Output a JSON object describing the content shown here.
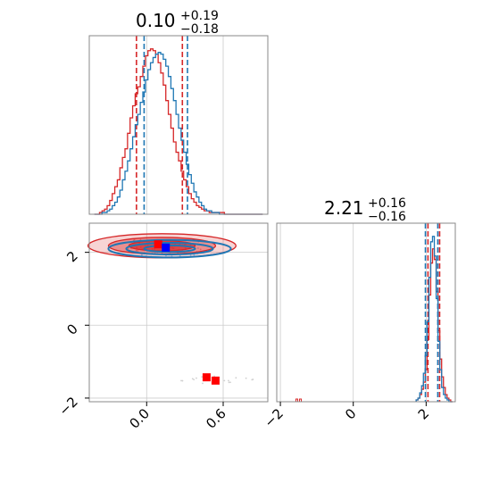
{
  "chart_data": {
    "type": "corner",
    "colors": {
      "series_a": "#d62728",
      "series_b": "#1f77b4",
      "marker_a": "#ff0000",
      "marker_b": "#0000ff",
      "grid": "#cccccc"
    },
    "panels": [
      {
        "id": "hist_param1",
        "type": "histogram",
        "title": {
          "value": "0.10",
          "sup": "+0.19",
          "sub": "−0.18"
        },
        "xlim": [
          -0.45,
          0.95
        ],
        "bin_centers": [
          -0.4,
          -0.38,
          -0.36,
          -0.34,
          -0.32,
          -0.3,
          -0.28,
          -0.26,
          -0.24,
          -0.22,
          -0.2,
          -0.18,
          -0.16,
          -0.14,
          -0.12,
          -0.1,
          -0.08,
          -0.06,
          -0.04,
          -0.02,
          0.0,
          0.02,
          0.04,
          0.06,
          0.08,
          0.1,
          0.12,
          0.14,
          0.16,
          0.18,
          0.2,
          0.22,
          0.24,
          0.26,
          0.28,
          0.3,
          0.32,
          0.34,
          0.36,
          0.38,
          0.4,
          0.42,
          0.44,
          0.46,
          0.48,
          0.5,
          0.52,
          0.54,
          0.56,
          0.58,
          0.6,
          0.62,
          0.64,
          0.66,
          0.68,
          0.7,
          0.72,
          0.74,
          0.76,
          0.78,
          0.8,
          0.82,
          0.84,
          0.86,
          0.88,
          0.9
        ],
        "series": [
          {
            "color": "#d62728",
            "counts": [
              0,
              0,
              1,
              2,
              3,
              5,
              8,
              12,
              16,
              20,
              27,
              33,
              38,
              47,
              56,
              63,
              70,
              74,
              80,
              86,
              92,
              95,
              96,
              95,
              93,
              88,
              82,
              75,
              66,
              58,
              50,
              42,
              36,
              31,
              25,
              20,
              16,
              12,
              9,
              7,
              5,
              4,
              3,
              2,
              2,
              1,
              1,
              1,
              1,
              1,
              1,
              0,
              0,
              0,
              0,
              0,
              0,
              0,
              0,
              0,
              0,
              0,
              0,
              0,
              0,
              0
            ],
            "markers": [
              -0.08,
              0.28
            ]
          },
          {
            "color": "#1f77b4",
            "counts": [
              0,
              0,
              0,
              1,
              1,
              2,
              3,
              5,
              7,
              10,
              14,
              20,
              25,
              31,
              38,
              45,
              52,
              58,
              65,
              71,
              78,
              84,
              88,
              91,
              93,
              94,
              93,
              90,
              86,
              80,
              73,
              66,
              58,
              50,
              43,
              36,
              29,
              23,
              18,
              13,
              10,
              7,
              5,
              3,
              2,
              2,
              1,
              1,
              1,
              0,
              0,
              0,
              0,
              0,
              0,
              0,
              0,
              0,
              0,
              0,
              0,
              0,
              0,
              0,
              0,
              0
            ],
            "markers": [
              -0.02,
              0.32
            ]
          }
        ]
      },
      {
        "id": "joint",
        "type": "scatter_contour",
        "xlim": [
          -0.45,
          0.95
        ],
        "ylim": [
          -2.1,
          2.8
        ],
        "contours": [
          {
            "color": "#d62728",
            "cx": 0.12,
            "cy": 2.18,
            "levels": [
              [
                0.58,
                0.33
              ],
              [
                0.42,
                0.23
              ],
              [
                0.26,
                0.14
              ]
            ],
            "fill_opacity": [
              0.2,
              0.4,
              0.7
            ]
          },
          {
            "color": "#1f77b4",
            "cx": 0.18,
            "cy": 2.1,
            "levels": [
              [
                0.48,
                0.24
              ],
              [
                0.34,
                0.16
              ],
              [
                0.2,
                0.09
              ]
            ],
            "fill_opacity": [
              0,
              0,
              0
            ]
          }
        ],
        "truth_points": [
          {
            "color": "#ff0000",
            "x": 0.09,
            "y": 2.22
          },
          {
            "color": "#0000ff",
            "x": 0.15,
            "y": 2.13
          },
          {
            "color": "#ff0000",
            "x": 0.47,
            "y": -1.43
          },
          {
            "color": "#ff0000",
            "x": 0.54,
            "y": -1.52
          }
        ],
        "scatter_clusters": [
          {
            "color": "#ef9a9a",
            "cx": 0.15,
            "cy": 2.15,
            "sx": 0.3,
            "sy": 0.2,
            "n": 50
          },
          {
            "color": "#90caf9",
            "cx": 0.2,
            "cy": 2.05,
            "sx": 0.25,
            "sy": 0.18,
            "n": 40
          },
          {
            "color": "#d0d0d0",
            "cx": 0.55,
            "cy": -1.5,
            "sx": 0.3,
            "sy": 0.1,
            "n": 18
          }
        ]
      },
      {
        "id": "hist_param2",
        "type": "histogram",
        "title": {
          "value": "2.21",
          "sup": "+0.16",
          "sub": "−0.16"
        },
        "xlim": [
          -2.1,
          2.8
        ],
        "bin_centers": [
          1.75,
          1.8,
          1.85,
          1.9,
          1.95,
          2.0,
          2.05,
          2.1,
          2.15,
          2.2,
          2.25,
          2.3,
          2.35,
          2.4,
          2.45,
          2.5,
          2.55,
          2.6,
          2.65,
          2.7
        ],
        "series": [
          {
            "color": "#d62728",
            "counts": [
              1,
              2,
              4,
              7,
              11,
              18,
              35,
              60,
              78,
              86,
              80,
              62,
              40,
              24,
              14,
              8,
              4,
              2,
              1,
              0
            ],
            "markers": [
              2.05,
              2.37
            ],
            "outliers": [
              [
                -1.55,
                1
              ],
              [
                -1.45,
                1
              ]
            ]
          },
          {
            "color": "#1f77b4",
            "counts": [
              1,
              2,
              5,
              9,
              16,
              26,
              45,
              70,
              90,
              93,
              82,
              58,
              34,
              18,
              8,
              4,
              2,
              1,
              0,
              0
            ],
            "markers": [
              1.98,
              2.32
            ]
          }
        ]
      }
    ],
    "axes": {
      "bottom_left": {
        "ticks": [
          0.0,
          0.6
        ],
        "labels": [
          "0.0",
          "0.6"
        ]
      },
      "left_mid": {
        "ticks": [
          -2,
          0,
          2
        ],
        "labels": [
          "−2",
          "0",
          "2"
        ]
      },
      "bottom_right": {
        "ticks": [
          -2,
          0,
          2
        ],
        "labels": [
          "−2",
          "0",
          "2"
        ]
      }
    }
  }
}
